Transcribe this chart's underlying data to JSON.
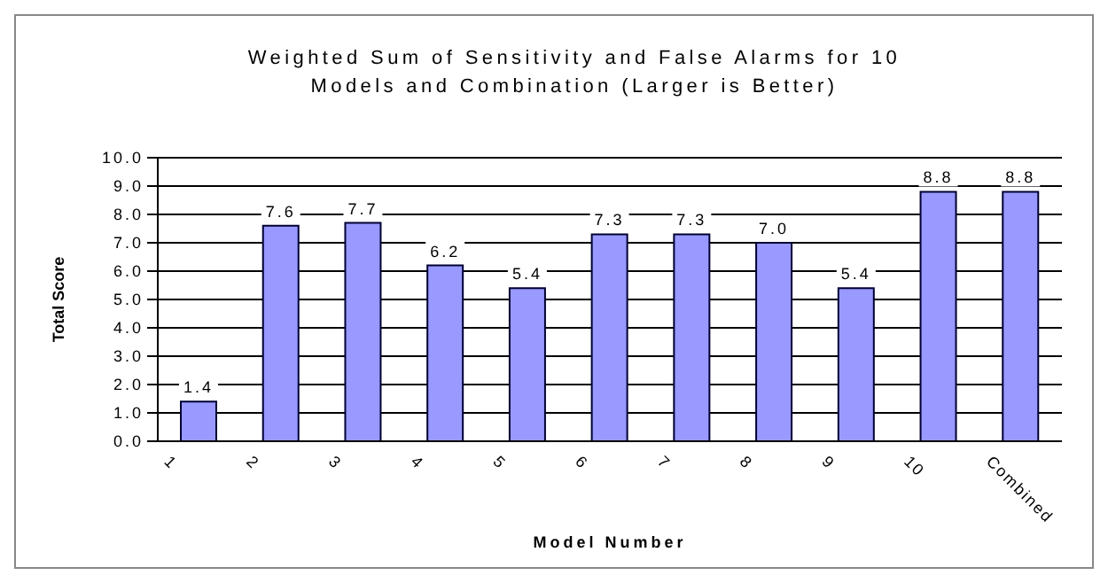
{
  "chart_data": {
    "type": "bar",
    "title": "Weighted Sum of Sensitivity and False Alarms for 10 Models and Combination (Larger is Better)",
    "xlabel": "Model Number",
    "ylabel": "Total Score",
    "categories": [
      "1",
      "2",
      "3",
      "4",
      "5",
      "6",
      "7",
      "8",
      "9",
      "10",
      "Combined"
    ],
    "values": [
      1.4,
      7.6,
      7.7,
      6.2,
      5.4,
      7.3,
      7.3,
      7.0,
      5.4,
      8.8,
      8.8
    ],
    "value_labels": [
      "1.4",
      "7.6",
      "7.7",
      "6.2",
      "5.4",
      "7.3",
      "7.3",
      "7.0",
      "5.4",
      "8.8",
      "8.8"
    ],
    "color": "#9999ff",
    "ylim": [
      0,
      10
    ],
    "yticks": [
      {
        "value": 0,
        "label": "0.0"
      },
      {
        "value": 1,
        "label": "1.0"
      },
      {
        "value": 2,
        "label": "2.0"
      },
      {
        "value": 3,
        "label": "3.0"
      },
      {
        "value": 4,
        "label": "4.0"
      },
      {
        "value": 5,
        "label": "5.0"
      },
      {
        "value": 6,
        "label": "6.0"
      },
      {
        "value": 7,
        "label": "7.0"
      },
      {
        "value": 8,
        "label": "8.0"
      },
      {
        "value": 9,
        "label": "9.0"
      },
      {
        "value": 10,
        "label": "10.0"
      }
    ],
    "grid": "y"
  }
}
